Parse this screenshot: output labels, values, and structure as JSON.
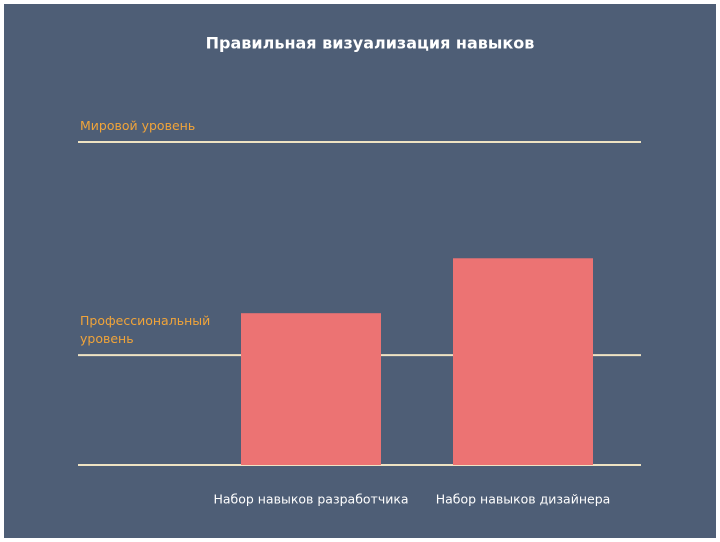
{
  "chart_data": {
    "type": "bar",
    "title": "Правильная визуализация навыков",
    "categories": [
      "Набор навыков разработчика",
      "Набор навыков дизайнера"
    ],
    "values": [
      47,
      64
    ],
    "color": "#ec7373",
    "ylim": [
      0,
      100
    ],
    "reference_lines": [
      {
        "value": 100,
        "label": "Мировой уровень"
      },
      {
        "value": 34,
        "label": "Профессиональный уровень"
      }
    ],
    "line_color": "#efe3c3",
    "label_color": "#f0a43a"
  }
}
